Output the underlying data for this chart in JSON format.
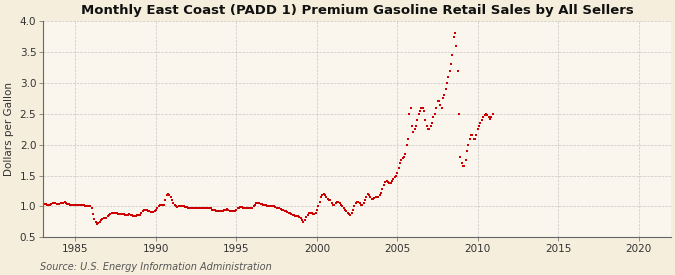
{
  "title": "Monthly East Coast (PADD 1) Premium Gasoline Retail Sales by All Sellers",
  "ylabel": "Dollars per Gallon",
  "source": "Source: U.S. Energy Information Administration",
  "xlim": [
    1983,
    2022
  ],
  "ylim": [
    0.5,
    4.0
  ],
  "yticks": [
    0.5,
    1.0,
    1.5,
    2.0,
    2.5,
    3.0,
    3.5,
    4.0
  ],
  "xticks": [
    1985,
    1990,
    1995,
    2000,
    2005,
    2010,
    2015,
    2020
  ],
  "marker_color": "#cc0000",
  "bg_color": "#f5eedc",
  "plot_bg_color": "#faf6ee",
  "grid_color": "#bbbbbb",
  "title_fontsize": 9.5,
  "axis_label_fontsize": 7.5,
  "tick_fontsize": 7.5,
  "source_fontsize": 7,
  "data": [
    [
      1983.08,
      1.04
    ],
    [
      1983.17,
      1.04
    ],
    [
      1983.25,
      1.03
    ],
    [
      1983.33,
      1.02
    ],
    [
      1983.42,
      1.03
    ],
    [
      1983.5,
      1.04
    ],
    [
      1983.58,
      1.05
    ],
    [
      1983.67,
      1.05
    ],
    [
      1983.75,
      1.05
    ],
    [
      1983.83,
      1.04
    ],
    [
      1983.92,
      1.04
    ],
    [
      1984.0,
      1.04
    ],
    [
      1984.08,
      1.05
    ],
    [
      1984.17,
      1.06
    ],
    [
      1984.25,
      1.06
    ],
    [
      1984.33,
      1.07
    ],
    [
      1984.42,
      1.05
    ],
    [
      1984.5,
      1.04
    ],
    [
      1984.58,
      1.04
    ],
    [
      1984.67,
      1.03
    ],
    [
      1984.75,
      1.03
    ],
    [
      1984.83,
      1.03
    ],
    [
      1984.92,
      1.03
    ],
    [
      1985.0,
      1.03
    ],
    [
      1985.08,
      1.03
    ],
    [
      1985.17,
      1.03
    ],
    [
      1985.25,
      1.03
    ],
    [
      1985.33,
      1.02
    ],
    [
      1985.42,
      1.02
    ],
    [
      1985.5,
      1.02
    ],
    [
      1985.58,
      1.0
    ],
    [
      1985.67,
      1.0
    ],
    [
      1985.75,
      1.0
    ],
    [
      1985.83,
      1.0
    ],
    [
      1985.92,
      1.0
    ],
    [
      1986.0,
      0.98
    ],
    [
      1986.08,
      0.88
    ],
    [
      1986.17,
      0.8
    ],
    [
      1986.25,
      0.75
    ],
    [
      1986.33,
      0.72
    ],
    [
      1986.42,
      0.73
    ],
    [
      1986.5,
      0.75
    ],
    [
      1986.58,
      0.78
    ],
    [
      1986.67,
      0.8
    ],
    [
      1986.75,
      0.82
    ],
    [
      1986.83,
      0.82
    ],
    [
      1986.92,
      0.82
    ],
    [
      1987.0,
      0.85
    ],
    [
      1987.08,
      0.86
    ],
    [
      1987.17,
      0.88
    ],
    [
      1987.25,
      0.9
    ],
    [
      1987.33,
      0.9
    ],
    [
      1987.42,
      0.9
    ],
    [
      1987.5,
      0.9
    ],
    [
      1987.58,
      0.9
    ],
    [
      1987.67,
      0.88
    ],
    [
      1987.75,
      0.88
    ],
    [
      1987.83,
      0.88
    ],
    [
      1987.92,
      0.88
    ],
    [
      1988.0,
      0.88
    ],
    [
      1988.08,
      0.87
    ],
    [
      1988.17,
      0.87
    ],
    [
      1988.25,
      0.87
    ],
    [
      1988.33,
      0.88
    ],
    [
      1988.42,
      0.87
    ],
    [
      1988.5,
      0.86
    ],
    [
      1988.58,
      0.85
    ],
    [
      1988.67,
      0.85
    ],
    [
      1988.75,
      0.85
    ],
    [
      1988.83,
      0.86
    ],
    [
      1988.92,
      0.86
    ],
    [
      1989.0,
      0.87
    ],
    [
      1989.08,
      0.89
    ],
    [
      1989.17,
      0.92
    ],
    [
      1989.25,
      0.95
    ],
    [
      1989.33,
      0.95
    ],
    [
      1989.42,
      0.95
    ],
    [
      1989.5,
      0.93
    ],
    [
      1989.58,
      0.92
    ],
    [
      1989.67,
      0.91
    ],
    [
      1989.75,
      0.91
    ],
    [
      1989.83,
      0.91
    ],
    [
      1989.92,
      0.92
    ],
    [
      1990.0,
      0.95
    ],
    [
      1990.08,
      0.97
    ],
    [
      1990.17,
      1.0
    ],
    [
      1990.25,
      1.02
    ],
    [
      1990.33,
      1.02
    ],
    [
      1990.42,
      1.02
    ],
    [
      1990.5,
      1.02
    ],
    [
      1990.58,
      1.1
    ],
    [
      1990.67,
      1.18
    ],
    [
      1990.75,
      1.2
    ],
    [
      1990.83,
      1.18
    ],
    [
      1990.92,
      1.15
    ],
    [
      1991.0,
      1.1
    ],
    [
      1991.08,
      1.05
    ],
    [
      1991.17,
      1.02
    ],
    [
      1991.25,
      1.0
    ],
    [
      1991.33,
      0.99
    ],
    [
      1991.42,
      1.0
    ],
    [
      1991.5,
      1.0
    ],
    [
      1991.58,
      1.0
    ],
    [
      1991.67,
      1.0
    ],
    [
      1991.75,
      1.0
    ],
    [
      1991.83,
      0.99
    ],
    [
      1991.92,
      0.99
    ],
    [
      1992.0,
      0.98
    ],
    [
      1992.08,
      0.97
    ],
    [
      1992.17,
      0.97
    ],
    [
      1992.25,
      0.97
    ],
    [
      1992.33,
      0.97
    ],
    [
      1992.42,
      0.97
    ],
    [
      1992.5,
      0.97
    ],
    [
      1992.58,
      0.97
    ],
    [
      1992.67,
      0.97
    ],
    [
      1992.75,
      0.97
    ],
    [
      1992.83,
      0.97
    ],
    [
      1992.92,
      0.97
    ],
    [
      1993.0,
      0.97
    ],
    [
      1993.08,
      0.97
    ],
    [
      1993.17,
      0.97
    ],
    [
      1993.25,
      0.97
    ],
    [
      1993.33,
      0.97
    ],
    [
      1993.42,
      0.97
    ],
    [
      1993.5,
      0.95
    ],
    [
      1993.58,
      0.94
    ],
    [
      1993.67,
      0.94
    ],
    [
      1993.75,
      0.93
    ],
    [
      1993.83,
      0.93
    ],
    [
      1993.92,
      0.93
    ],
    [
      1994.0,
      0.93
    ],
    [
      1994.08,
      0.93
    ],
    [
      1994.17,
      0.93
    ],
    [
      1994.25,
      0.94
    ],
    [
      1994.33,
      0.95
    ],
    [
      1994.42,
      0.96
    ],
    [
      1994.5,
      0.95
    ],
    [
      1994.58,
      0.93
    ],
    [
      1994.67,
      0.93
    ],
    [
      1994.75,
      0.93
    ],
    [
      1994.83,
      0.93
    ],
    [
      1994.92,
      0.93
    ],
    [
      1995.0,
      0.95
    ],
    [
      1995.08,
      0.97
    ],
    [
      1995.17,
      0.98
    ],
    [
      1995.25,
      0.99
    ],
    [
      1995.33,
      0.99
    ],
    [
      1995.42,
      0.98
    ],
    [
      1995.5,
      0.97
    ],
    [
      1995.58,
      0.97
    ],
    [
      1995.67,
      0.97
    ],
    [
      1995.75,
      0.97
    ],
    [
      1995.83,
      0.97
    ],
    [
      1995.92,
      0.97
    ],
    [
      1996.0,
      0.98
    ],
    [
      1996.08,
      1.0
    ],
    [
      1996.17,
      1.02
    ],
    [
      1996.25,
      1.05
    ],
    [
      1996.33,
      1.06
    ],
    [
      1996.42,
      1.05
    ],
    [
      1996.5,
      1.04
    ],
    [
      1996.58,
      1.04
    ],
    [
      1996.67,
      1.03
    ],
    [
      1996.75,
      1.02
    ],
    [
      1996.83,
      1.02
    ],
    [
      1996.92,
      1.01
    ],
    [
      1997.0,
      1.0
    ],
    [
      1997.08,
      1.0
    ],
    [
      1997.17,
      1.0
    ],
    [
      1997.25,
      1.01
    ],
    [
      1997.33,
      1.0
    ],
    [
      1997.42,
      0.99
    ],
    [
      1997.5,
      0.98
    ],
    [
      1997.58,
      0.97
    ],
    [
      1997.67,
      0.97
    ],
    [
      1997.75,
      0.96
    ],
    [
      1997.83,
      0.95
    ],
    [
      1997.92,
      0.94
    ],
    [
      1998.0,
      0.93
    ],
    [
      1998.08,
      0.92
    ],
    [
      1998.17,
      0.91
    ],
    [
      1998.25,
      0.9
    ],
    [
      1998.33,
      0.89
    ],
    [
      1998.42,
      0.88
    ],
    [
      1998.5,
      0.87
    ],
    [
      1998.58,
      0.86
    ],
    [
      1998.67,
      0.85
    ],
    [
      1998.75,
      0.84
    ],
    [
      1998.83,
      0.84
    ],
    [
      1998.92,
      0.83
    ],
    [
      1999.0,
      0.82
    ],
    [
      1999.08,
      0.78
    ],
    [
      1999.17,
      0.75
    ],
    [
      1999.25,
      0.78
    ],
    [
      1999.33,
      0.83
    ],
    [
      1999.42,
      0.87
    ],
    [
      1999.5,
      0.89
    ],
    [
      1999.58,
      0.9
    ],
    [
      1999.67,
      0.9
    ],
    [
      1999.75,
      0.88
    ],
    [
      1999.83,
      0.88
    ],
    [
      1999.92,
      0.9
    ],
    [
      2000.0,
      0.95
    ],
    [
      2000.08,
      1.0
    ],
    [
      2000.17,
      1.08
    ],
    [
      2000.25,
      1.15
    ],
    [
      2000.33,
      1.18
    ],
    [
      2000.42,
      1.2
    ],
    [
      2000.5,
      1.18
    ],
    [
      2000.58,
      1.15
    ],
    [
      2000.67,
      1.12
    ],
    [
      2000.75,
      1.1
    ],
    [
      2000.83,
      1.1
    ],
    [
      2000.92,
      1.05
    ],
    [
      2001.0,
      1.02
    ],
    [
      2001.08,
      1.02
    ],
    [
      2001.17,
      1.05
    ],
    [
      2001.25,
      1.08
    ],
    [
      2001.33,
      1.07
    ],
    [
      2001.42,
      1.05
    ],
    [
      2001.5,
      1.02
    ],
    [
      2001.58,
      1.0
    ],
    [
      2001.67,
      0.98
    ],
    [
      2001.75,
      0.95
    ],
    [
      2001.83,
      0.93
    ],
    [
      2001.92,
      0.9
    ],
    [
      2002.0,
      0.88
    ],
    [
      2002.08,
      0.87
    ],
    [
      2002.17,
      0.9
    ],
    [
      2002.25,
      0.95
    ],
    [
      2002.33,
      1.0
    ],
    [
      2002.42,
      1.05
    ],
    [
      2002.5,
      1.08
    ],
    [
      2002.58,
      1.08
    ],
    [
      2002.67,
      1.05
    ],
    [
      2002.75,
      1.03
    ],
    [
      2002.83,
      1.03
    ],
    [
      2002.92,
      1.05
    ],
    [
      2003.0,
      1.1
    ],
    [
      2003.08,
      1.15
    ],
    [
      2003.17,
      1.2
    ],
    [
      2003.25,
      1.18
    ],
    [
      2003.33,
      1.15
    ],
    [
      2003.42,
      1.12
    ],
    [
      2003.5,
      1.12
    ],
    [
      2003.58,
      1.13
    ],
    [
      2003.67,
      1.15
    ],
    [
      2003.75,
      1.15
    ],
    [
      2003.83,
      1.15
    ],
    [
      2003.92,
      1.18
    ],
    [
      2004.0,
      1.22
    ],
    [
      2004.08,
      1.28
    ],
    [
      2004.17,
      1.35
    ],
    [
      2004.25,
      1.4
    ],
    [
      2004.33,
      1.42
    ],
    [
      2004.42,
      1.4
    ],
    [
      2004.5,
      1.38
    ],
    [
      2004.58,
      1.38
    ],
    [
      2004.67,
      1.42
    ],
    [
      2004.75,
      1.45
    ],
    [
      2004.83,
      1.48
    ],
    [
      2004.92,
      1.5
    ],
    [
      2005.0,
      1.55
    ],
    [
      2005.08,
      1.62
    ],
    [
      2005.17,
      1.7
    ],
    [
      2005.25,
      1.75
    ],
    [
      2005.33,
      1.78
    ],
    [
      2005.42,
      1.8
    ],
    [
      2005.5,
      1.85
    ],
    [
      2005.58,
      2.0
    ],
    [
      2005.67,
      2.1
    ],
    [
      2005.75,
      2.5
    ],
    [
      2005.83,
      2.6
    ],
    [
      2005.92,
      2.3
    ],
    [
      2006.0,
      2.2
    ],
    [
      2006.08,
      2.25
    ],
    [
      2006.17,
      2.3
    ],
    [
      2006.25,
      2.4
    ],
    [
      2006.33,
      2.5
    ],
    [
      2006.42,
      2.55
    ],
    [
      2006.5,
      2.6
    ],
    [
      2006.58,
      2.6
    ],
    [
      2006.67,
      2.55
    ],
    [
      2006.75,
      2.4
    ],
    [
      2006.83,
      2.3
    ],
    [
      2006.92,
      2.25
    ],
    [
      2007.0,
      2.25
    ],
    [
      2007.08,
      2.3
    ],
    [
      2007.17,
      2.35
    ],
    [
      2007.25,
      2.45
    ],
    [
      2007.33,
      2.5
    ],
    [
      2007.42,
      2.6
    ],
    [
      2007.5,
      2.7
    ],
    [
      2007.58,
      2.7
    ],
    [
      2007.67,
      2.65
    ],
    [
      2007.75,
      2.6
    ],
    [
      2007.83,
      2.75
    ],
    [
      2007.92,
      2.8
    ],
    [
      2008.0,
      2.9
    ],
    [
      2008.08,
      3.0
    ],
    [
      2008.17,
      3.1
    ],
    [
      2008.25,
      3.2
    ],
    [
      2008.33,
      3.3
    ],
    [
      2008.42,
      3.45
    ],
    [
      2008.5,
      3.75
    ],
    [
      2008.58,
      3.8
    ],
    [
      2008.67,
      3.6
    ],
    [
      2008.75,
      3.2
    ],
    [
      2008.83,
      2.5
    ],
    [
      2008.92,
      1.8
    ],
    [
      2009.0,
      1.7
    ],
    [
      2009.08,
      1.65
    ],
    [
      2009.17,
      1.65
    ],
    [
      2009.25,
      1.75
    ],
    [
      2009.33,
      1.9
    ],
    [
      2009.42,
      2.0
    ],
    [
      2009.5,
      2.1
    ],
    [
      2009.58,
      2.15
    ],
    [
      2009.67,
      2.15
    ],
    [
      2009.75,
      2.1
    ],
    [
      2009.83,
      2.1
    ],
    [
      2009.92,
      2.15
    ],
    [
      2010.0,
      2.25
    ],
    [
      2010.08,
      2.3
    ],
    [
      2010.17,
      2.35
    ],
    [
      2010.25,
      2.4
    ],
    [
      2010.33,
      2.45
    ],
    [
      2010.42,
      2.48
    ],
    [
      2010.5,
      2.5
    ],
    [
      2010.58,
      2.48
    ],
    [
      2010.67,
      2.45
    ],
    [
      2010.75,
      2.42
    ],
    [
      2010.83,
      2.45
    ],
    [
      2010.92,
      2.5
    ]
  ]
}
